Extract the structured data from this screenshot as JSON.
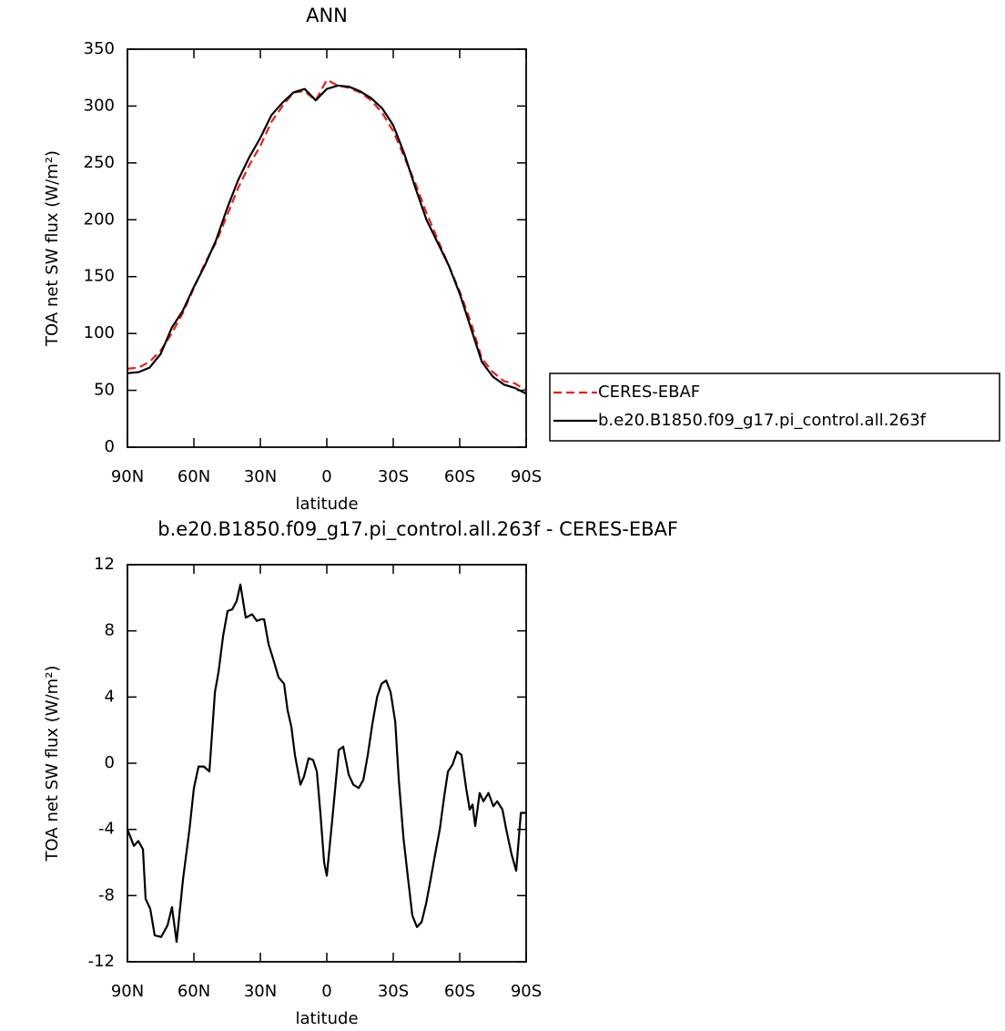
{
  "chart_data": [
    {
      "type": "line",
      "title": "ANN",
      "x_label": "latitude",
      "y_label": "TOA net SW flux (W/m²)",
      "x": [
        90,
        85,
        80,
        75,
        70,
        65,
        60,
        55,
        50,
        45,
        40,
        35,
        30,
        25,
        20,
        15,
        10,
        5,
        0,
        -5,
        -10,
        -15,
        -20,
        -25,
        -30,
        -35,
        -40,
        -45,
        -50,
        -55,
        -60,
        -65,
        -70,
        -75,
        -80,
        -85,
        -90
      ],
      "series": [
        {
          "name": "CERES-EBAF",
          "color": "#e8201a",
          "line_style": "dashed",
          "values": [
            69,
            70,
            75,
            85,
            100,
            118,
            140,
            162,
            180,
            204,
            228,
            248,
            265,
            286,
            300,
            312,
            313,
            305,
            323,
            318,
            316,
            312,
            305,
            294,
            278,
            255,
            232,
            206,
            183,
            160,
            137,
            110,
            78,
            66,
            58,
            56,
            50
          ]
        },
        {
          "name": "b.e20.B1850.f09_g17.pi_control.all.263f",
          "color": "#000000",
          "line_style": "solid",
          "values": [
            65,
            66,
            70,
            82,
            105,
            120,
            141,
            160,
            182,
            210,
            235,
            255,
            272,
            292,
            303,
            312,
            315,
            305,
            315,
            318,
            317,
            313,
            307,
            298,
            283,
            258,
            228,
            200,
            180,
            160,
            135,
            105,
            75,
            62,
            55,
            52,
            47
          ]
        }
      ],
      "xlim": [
        90,
        -90
      ],
      "xticks": [
        {
          "value": 90,
          "label": "90N"
        },
        {
          "value": 60,
          "label": "60N"
        },
        {
          "value": 30,
          "label": "30N"
        },
        0,
        {
          "value": -30,
          "label": "30S"
        },
        {
          "value": -60,
          "label": "60S"
        },
        {
          "value": -90,
          "label": "90S"
        }
      ],
      "ylim": [
        0,
        350
      ],
      "yticks": [
        0,
        50,
        100,
        150,
        200,
        250,
        300,
        350
      ],
      "legend": "right"
    },
    {
      "type": "line",
      "title": "b.e20.B1850.f09_g17.pi_control.all.263f - CERES-EBAF",
      "x_label": "latitude",
      "y_label": "TOA net SW flux (W/m²)",
      "x": [
        90,
        87.1,
        85.1,
        83,
        81.8,
        79.7,
        77.7,
        74.8,
        71.9,
        69.9,
        67.8,
        64.9,
        62,
        60,
        57.9,
        55.5,
        53,
        50.5,
        48.9,
        46.8,
        44.8,
        42.7,
        40.7,
        39,
        36.6,
        33.7,
        31.6,
        29.6,
        28.3,
        26.3,
        24.2,
        21.8,
        19.3,
        17.7,
        16,
        14.4,
        11.9,
        10.3,
        8.2,
        6.2,
        4.5,
        2.9,
        1.2,
        0,
        -2.9,
        -5.4,
        -7.4,
        -9.9,
        -12,
        -14.4,
        -16.5,
        -18.5,
        -20.6,
        -22.7,
        -24.7,
        -26.8,
        -28.8,
        -30.9,
        -32.5,
        -34.6,
        -36.7,
        -38.6,
        -40.7,
        -42.8,
        -44.8,
        -46.9,
        -48.9,
        -51,
        -53,
        -54.7,
        -56.7,
        -58.8,
        -60.8,
        -62.9,
        -64.5,
        -65.8,
        -67,
        -69,
        -70.7,
        -73,
        -75.2,
        -76.9,
        -79.3,
        -81,
        -83.4,
        -85.5,
        -87.6,
        -90
      ],
      "values": [
        -4,
        -5,
        -4.7,
        -5.2,
        -8.2,
        -8.8,
        -10.4,
        -10.5,
        -9.8,
        -8.7,
        -10.8,
        -7,
        -4,
        -1.5,
        -0.2,
        -0.2,
        -0.5,
        4.3,
        5.5,
        7.7,
        9.2,
        9.3,
        9.8,
        10.8,
        8.8,
        9,
        8.6,
        8.7,
        8.7,
        7.2,
        6.3,
        5.2,
        4.8,
        3.2,
        2.2,
        0.5,
        -1.3,
        -0.8,
        0.3,
        0.2,
        -0.5,
        -3,
        -6,
        -6.8,
        -2.8,
        0.8,
        1,
        -0.7,
        -1.3,
        -1.5,
        -1,
        0.5,
        2.4,
        4,
        4.8,
        5,
        4.3,
        2.5,
        -1,
        -4.5,
        -7,
        -9.2,
        -9.9,
        -9.6,
        -8.5,
        -7,
        -5.5,
        -4,
        -2,
        -0.5,
        -0.1,
        0.7,
        0.5,
        -1.5,
        -2.8,
        -2.5,
        -3.8,
        -1.8,
        -2.3,
        -1.8,
        -2.6,
        -2.3,
        -2.8,
        -4,
        -5.5,
        -6.5,
        -3,
        -3
      ],
      "color": "#000000",
      "xlim": [
        90,
        -90
      ],
      "xticks": [
        {
          "value": 90,
          "label": "90N"
        },
        {
          "value": 60,
          "label": "60N"
        },
        {
          "value": 30,
          "label": "30N"
        },
        0,
        {
          "value": -30,
          "label": "30S"
        },
        {
          "value": -60,
          "label": "60S"
        },
        {
          "value": -90,
          "label": "90S"
        }
      ],
      "ylim": [
        -12,
        12
      ],
      "yticks": [
        -12,
        -8,
        -4,
        0,
        4,
        8,
        12
      ]
    }
  ]
}
